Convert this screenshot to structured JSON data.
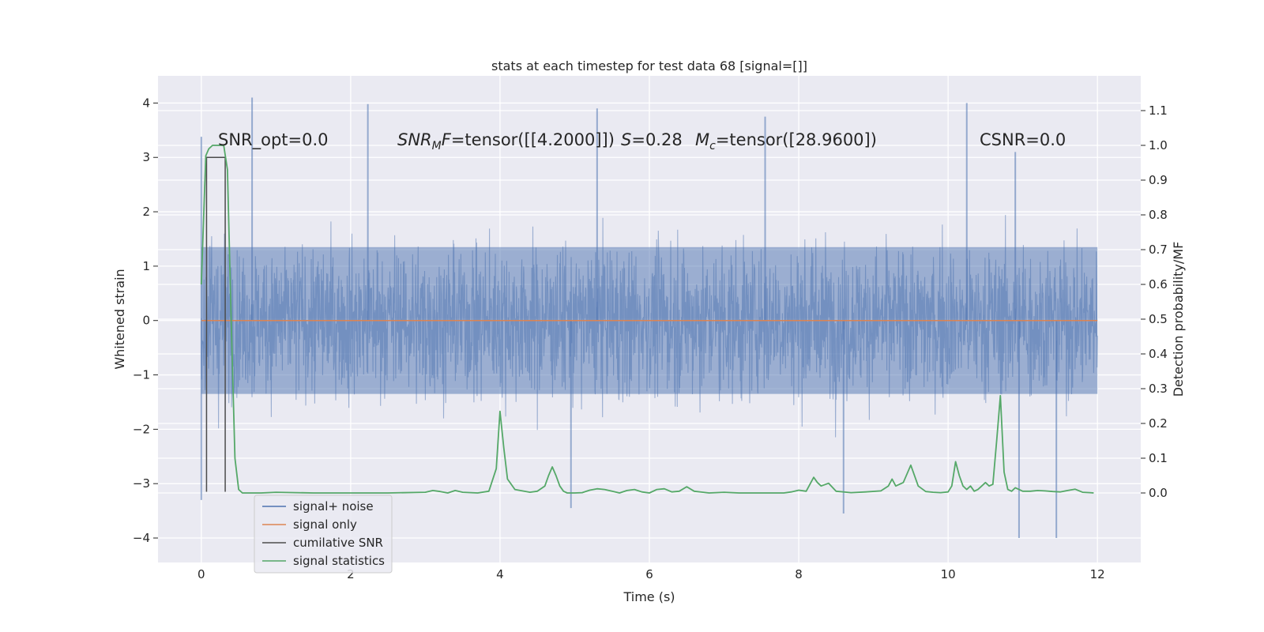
{
  "chart_data": {
    "type": "line",
    "title": "stats at each timestep for test data 68 [signal=[]]",
    "xlabel": "Time (s)",
    "ylabel": "Whitened strain",
    "y2label": "Detection probability/MF",
    "xlim": [
      -0.58,
      12.58
    ],
    "ylim": [
      -4.45,
      4.5
    ],
    "y2lim": [
      -0.2,
      1.2
    ],
    "grid": true,
    "legend_position": "lower-left",
    "x_ticks": [
      "0",
      "2",
      "4",
      "6",
      "8",
      "10",
      "12"
    ],
    "y_ticks": [
      "4",
      "3",
      "2",
      "1",
      "0",
      "−1",
      "−2",
      "−3",
      "−4"
    ],
    "y2_ticks": [
      "1.1",
      "1.0",
      "0.9",
      "0.8",
      "0.7",
      "0.6",
      "0.5",
      "0.4",
      "0.3",
      "0.2",
      "0.1",
      "0.0"
    ],
    "annotations": {
      "snr_opt": "SNR_opt=0.0",
      "snr_mf_var": "SNR",
      "snr_mf_sub": "M",
      "snr_mf_f": "F",
      "snr_mf_value": "=tensor([[4.2000]])",
      "s_var": "S",
      "s_value": "=0.28",
      "mc_var": "M",
      "mc_sub": "c",
      "mc_value": "=tensor([28.9600])",
      "csnr": "CSNR=0.0"
    },
    "series": [
      {
        "name": "signal+ noise",
        "color": "#4c72b0",
        "style": "noise strain, t = 0 to 12 s, whitened",
        "core_amplitude": 1.35,
        "notable_peaks": [
          [
            0.0,
            3.38
          ],
          [
            0.68,
            4.1
          ],
          [
            2.23,
            3.98
          ],
          [
            5.3,
            3.9
          ],
          [
            7.55,
            3.75
          ],
          [
            10.25,
            4.0
          ],
          [
            10.9,
            3.1
          ]
        ],
        "notable_troughs": [
          [
            0.0,
            -3.3
          ],
          [
            4.95,
            -3.45
          ],
          [
            8.6,
            -3.55
          ],
          [
            10.95,
            -4.0
          ],
          [
            11.45,
            -4.0
          ]
        ]
      },
      {
        "name": "signal only",
        "color": "#dd8452",
        "x": [
          0,
          12
        ],
        "y": [
          0,
          0
        ]
      },
      {
        "name": "cumilative SNR",
        "color": "#4c4c4c",
        "x": [
          0.07,
          0.07,
          0.32,
          0.32
        ],
        "y": [
          -3.15,
          3.0,
          3.0,
          -3.15
        ]
      },
      {
        "name": "signal statistics",
        "color": "#55a868",
        "axis": "right",
        "x": [
          0.0,
          0.06,
          0.1,
          0.15,
          0.2,
          0.3,
          0.35,
          0.4,
          0.45,
          0.5,
          0.55,
          0.6,
          0.8,
          1.0,
          1.5,
          2.0,
          2.5,
          3.0,
          3.1,
          3.2,
          3.3,
          3.4,
          3.5,
          3.7,
          3.85,
          3.95,
          4.0,
          4.05,
          4.1,
          4.2,
          4.4,
          4.5,
          4.6,
          4.65,
          4.7,
          4.75,
          4.8,
          4.85,
          4.9,
          5.0,
          5.1,
          5.2,
          5.3,
          5.4,
          5.5,
          5.6,
          5.7,
          5.8,
          5.9,
          6.0,
          6.1,
          6.2,
          6.3,
          6.4,
          6.5,
          6.6,
          6.8,
          7.0,
          7.2,
          7.4,
          7.6,
          7.8,
          7.9,
          8.0,
          8.1,
          8.2,
          8.25,
          8.3,
          8.4,
          8.5,
          8.7,
          8.9,
          9.1,
          9.2,
          9.25,
          9.3,
          9.4,
          9.5,
          9.6,
          9.7,
          9.8,
          9.9,
          10.0,
          10.05,
          10.1,
          10.15,
          10.2,
          10.25,
          10.3,
          10.35,
          10.4,
          10.45,
          10.5,
          10.55,
          10.6,
          10.65,
          10.7,
          10.75,
          10.8,
          10.85,
          10.9,
          10.95,
          11.0,
          11.1,
          11.2,
          11.3,
          11.4,
          11.5,
          11.6,
          11.7,
          11.8,
          11.9,
          11.95
        ],
        "y": [
          0.6,
          0.97,
          0.99,
          1.0,
          1.0,
          1.0,
          0.93,
          0.5,
          0.1,
          0.01,
          0.0,
          0.0,
          0.0,
          0.002,
          0.0,
          0.0,
          0.0,
          0.002,
          0.007,
          0.004,
          0.0,
          0.007,
          0.002,
          0.0,
          0.005,
          0.07,
          0.235,
          0.13,
          0.04,
          0.01,
          0.002,
          0.005,
          0.02,
          0.05,
          0.075,
          0.05,
          0.02,
          0.005,
          0.0,
          0.0,
          0.001,
          0.008,
          0.012,
          0.01,
          0.005,
          0.0,
          0.007,
          0.01,
          0.003,
          0.0,
          0.01,
          0.012,
          0.003,
          0.005,
          0.018,
          0.005,
          0.0,
          0.002,
          0.0,
          0.0,
          0.0,
          0.0,
          0.003,
          0.008,
          0.005,
          0.045,
          0.03,
          0.02,
          0.028,
          0.005,
          0.001,
          0.003,
          0.006,
          0.02,
          0.04,
          0.02,
          0.03,
          0.08,
          0.02,
          0.004,
          0.002,
          0.001,
          0.003,
          0.02,
          0.09,
          0.05,
          0.02,
          0.01,
          0.02,
          0.005,
          0.01,
          0.02,
          0.03,
          0.02,
          0.025,
          0.15,
          0.28,
          0.06,
          0.01,
          0.005,
          0.015,
          0.01,
          0.005,
          0.005,
          0.007,
          0.006,
          0.004,
          0.003,
          0.007,
          0.011,
          0.002,
          0.001,
          0.0
        ]
      }
    ]
  }
}
